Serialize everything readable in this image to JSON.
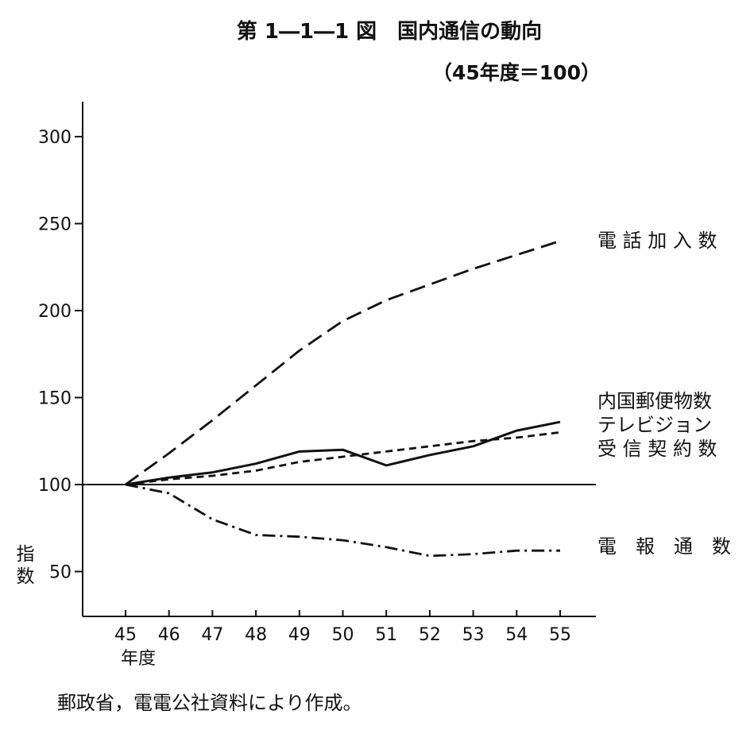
{
  "chart_data": {
    "type": "line",
    "title": "第 1―1―1 図　国内通信の動向",
    "subtitle": "（45年度＝100）",
    "xlabel": "年度",
    "ylabel": "指数",
    "x": [
      "45",
      "46",
      "47",
      "48",
      "49",
      "50",
      "51",
      "52",
      "53",
      "54",
      "55"
    ],
    "ylim": [
      25,
      320
    ],
    "y_ticks": [
      "50",
      "100",
      "150",
      "200",
      "250",
      "300"
    ],
    "grid": false,
    "baseline": 100,
    "series": [
      {
        "name": "電話加入数",
        "style": "long-dash",
        "values": [
          100,
          118,
          137,
          157,
          177,
          194,
          206,
          215,
          224,
          232,
          240
        ]
      },
      {
        "name": "内国郵便物数",
        "style": "solid",
        "values": [
          100,
          104,
          107,
          112,
          119,
          120,
          111,
          117,
          122,
          131,
          136
        ]
      },
      {
        "name": "テレビジョン受信契約数",
        "style": "short-dash",
        "values": [
          100,
          103,
          105,
          108,
          113,
          116,
          119,
          122,
          125,
          127,
          130
        ]
      },
      {
        "name": "電報通数",
        "style": "dash-dot",
        "values": [
          100,
          95,
          80,
          71,
          70,
          68,
          64,
          59,
          60,
          62,
          62
        ]
      }
    ],
    "series_labels": {
      "phone": "電 話 加 入 数",
      "mail": "内国郵便物数",
      "tv_line1": "テレビジョン",
      "tv_line2": "受 信 契 約 数",
      "telegram": "電　報　通　数"
    },
    "source": "郵政省，電電公社資料により作成。"
  }
}
